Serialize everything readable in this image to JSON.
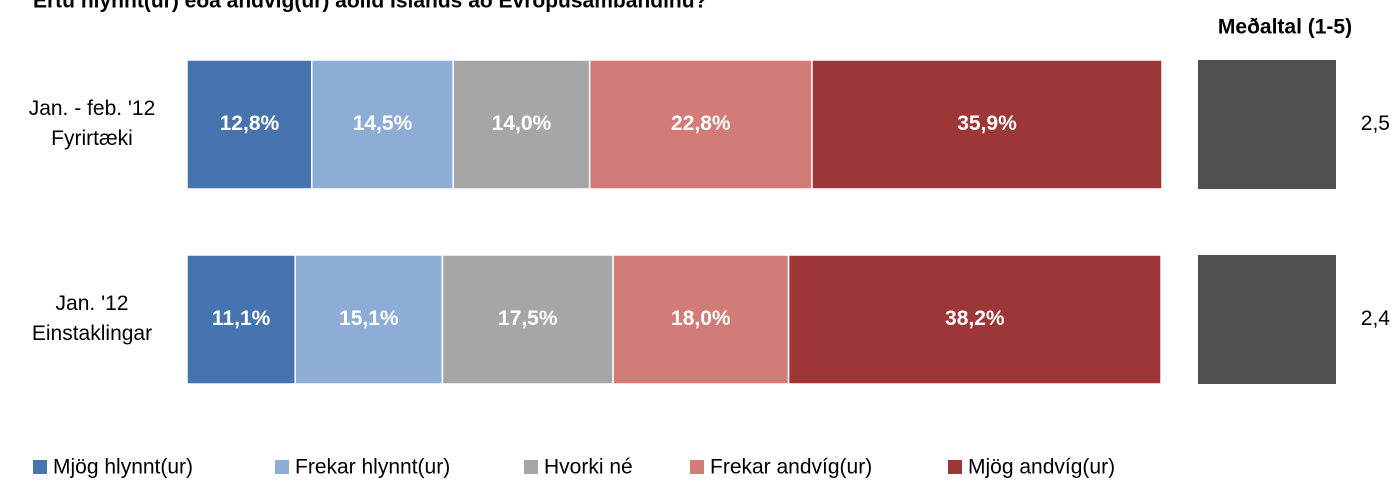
{
  "chart_data": {
    "type": "stacked-bar-horizontal",
    "title": "Ertu hlynnt(ur) eða andvíg(ur) aðild Íslands að Evrópusambandinu?",
    "categories": [
      [
        "Jan. - feb. '12",
        "Fyrirtæki"
      ],
      [
        "Jan. '12",
        "Einstaklingar"
      ]
    ],
    "xlim": [
      0,
      100
    ],
    "series": [
      {
        "name": "Mjög hlynnt(ur)",
        "color": "#4674af",
        "values": [
          12.8,
          11.1
        ],
        "value_labels": [
          "12,8%",
          "11,1%"
        ]
      },
      {
        "name": "Frekar hlynnt(ur)",
        "color": "#8eadd6",
        "values": [
          14.5,
          15.1
        ],
        "value_labels": [
          "14,5%",
          "15,1%"
        ]
      },
      {
        "name": "Hvorki né",
        "color": "#a6a6a6",
        "values": [
          14.0,
          17.5
        ],
        "value_labels": [
          "14,0%",
          "17,5%"
        ]
      },
      {
        "name": "Frekar andvíg(ur)",
        "color": "#d27c77",
        "values": [
          22.8,
          18.0
        ],
        "value_labels": [
          "22,8%",
          "18,0%"
        ]
      },
      {
        "name": "Mjög andvíg(ur)",
        "color": "#9d3737",
        "values": [
          35.9,
          38.2
        ],
        "value_labels": [
          "35,9%",
          "38,2%"
        ]
      }
    ],
    "mean": {
      "title": "Meðaltal (1-5)",
      "values": [
        2.5,
        2.4
      ],
      "value_labels": [
        "2,5",
        "2,4"
      ],
      "color": "#505050"
    },
    "legend": "bottom"
  }
}
